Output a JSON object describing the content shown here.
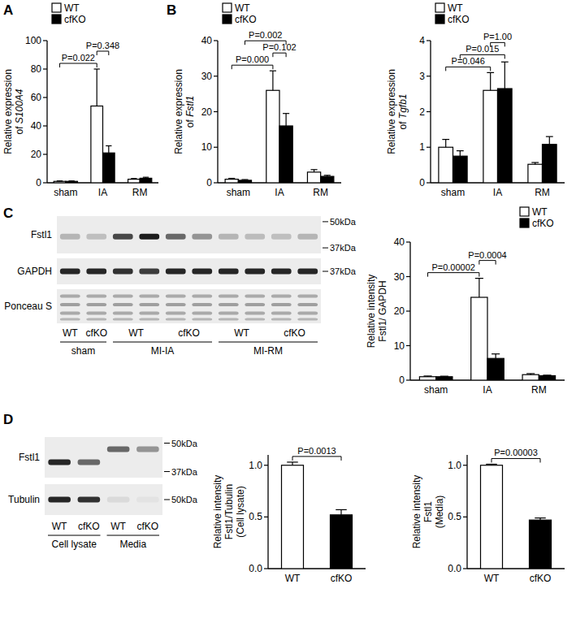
{
  "chart_data": [
    {
      "type": "bar",
      "panel": "A",
      "ylabel": [
        "Relative expression",
        "of S100A4"
      ],
      "categories": [
        "sham",
        "IA",
        "RM"
      ],
      "series": [
        {
          "name": "WT",
          "color": "#ffffff",
          "values": [
            1,
            54,
            2.5
          ],
          "errors": [
            0.3,
            26,
            0.5
          ]
        },
        {
          "name": "cfKO",
          "color": "#000000",
          "values": [
            1,
            21,
            3.2
          ],
          "errors": [
            0.3,
            5,
            0.7
          ]
        }
      ],
      "ylim": [
        0,
        100
      ],
      "yticks": [
        0,
        20,
        40,
        60,
        80,
        100
      ],
      "legend": "top-left",
      "annotations": [
        {
          "text": "P=0.022",
          "between": [
            [
              0,
              0
            ],
            [
              1,
              0
            ]
          ]
        },
        {
          "text": "P=0.348",
          "between": [
            [
              1,
              0
            ],
            [
              1,
              1
            ]
          ]
        }
      ]
    },
    {
      "type": "bar",
      "panel": "B",
      "ylabel": [
        "Relative expression",
        "of Fstl1"
      ],
      "categories": [
        "sham",
        "IA",
        "RM"
      ],
      "series": [
        {
          "name": "WT",
          "color": "#ffffff",
          "values": [
            1,
            26,
            3
          ],
          "errors": [
            0.25,
            5.5,
            0.7
          ]
        },
        {
          "name": "cfKO",
          "color": "#000000",
          "values": [
            0.7,
            16,
            1.8
          ],
          "errors": [
            0.2,
            3.5,
            0.3
          ]
        }
      ],
      "ylim": [
        0,
        40
      ],
      "yticks": [
        0,
        10,
        20,
        30,
        40
      ],
      "legend": "top-left",
      "annotations": [
        {
          "text": "P=0.000",
          "between": [
            [
              0,
              0
            ],
            [
              1,
              0
            ]
          ]
        },
        {
          "text": "P=0.102",
          "between": [
            [
              1,
              0
            ],
            [
              1,
              1
            ]
          ]
        },
        {
          "text": "P=0.002",
          "between": [
            [
              0,
              1
            ],
            [
              1,
              1
            ]
          ]
        }
      ]
    },
    {
      "type": "bar",
      "ylabel": [
        "Relative expression",
        "of Tgfb1"
      ],
      "categories": [
        "sham",
        "IA",
        "RM"
      ],
      "series": [
        {
          "name": "WT",
          "color": "#ffffff",
          "values": [
            1.0,
            2.6,
            0.52
          ],
          "errors": [
            0.22,
            0.5,
            0.05
          ]
        },
        {
          "name": "cfKO",
          "color": "#000000",
          "values": [
            0.75,
            2.65,
            1.08
          ],
          "errors": [
            0.15,
            0.75,
            0.22
          ]
        }
      ],
      "ylim": [
        0,
        4
      ],
      "yticks": [
        0,
        1,
        2,
        3,
        4
      ],
      "legend": "top-left",
      "annotations": [
        {
          "text": "P=0.046",
          "between": [
            [
              0,
              0
            ],
            [
              1,
              0
            ]
          ]
        },
        {
          "text": "P=0.015",
          "between": [
            [
              0,
              1
            ],
            [
              1,
              1
            ]
          ]
        },
        {
          "text": "P=1.00",
          "between": [
            [
              1,
              0
            ],
            [
              1,
              1
            ]
          ]
        }
      ]
    },
    {
      "type": "bar",
      "ylabel": [
        "Relative intensity",
        "Fstl1/ GAPDH"
      ],
      "categories": [
        "sham",
        "IA",
        "RM"
      ],
      "series": [
        {
          "name": "WT",
          "color": "#ffffff",
          "values": [
            1,
            24,
            1.6
          ],
          "errors": [
            0.2,
            5.5,
            0.3
          ]
        },
        {
          "name": "cfKO",
          "color": "#000000",
          "values": [
            1,
            6.3,
            1.3
          ],
          "errors": [
            0.15,
            1.3,
            0.15
          ]
        }
      ],
      "ylim": [
        0,
        40
      ],
      "yticks": [
        0,
        10,
        20,
        30,
        40
      ],
      "legend": "top-right",
      "annotations": [
        {
          "text": "P=0.00002",
          "between": [
            [
              0,
              0
            ],
            [
              1,
              0
            ]
          ]
        },
        {
          "text": "P=0.0004",
          "between": [
            [
              1,
              0
            ],
            [
              1,
              1
            ]
          ]
        }
      ]
    },
    {
      "type": "bar",
      "ylabel": [
        "Relative intensity",
        "Fstl1/Tubulin",
        "(Cell lysate)"
      ],
      "categories": [
        "WT",
        "cfKO"
      ],
      "values": [
        1,
        0.52
      ],
      "errors": [
        0.03,
        0.05
      ],
      "colors": [
        "#ffffff",
        "#000000"
      ],
      "ylim": [
        0,
        1.1
      ],
      "yticks": [
        {
          "value": 0,
          "label": "0.0"
        },
        {
          "value": 0.5,
          "label": "0.5"
        },
        {
          "value": 1,
          "label": "1.0"
        }
      ],
      "annotations": [
        {
          "text": "P=0.0013",
          "between": [
            [
              0,
              0
            ],
            [
              1,
              0
            ]
          ]
        }
      ]
    },
    {
      "type": "bar",
      "ylabel": [
        "Relative intensity",
        "Fstl1",
        "(Media)"
      ],
      "categories": [
        "WT",
        "cfKO"
      ],
      "values": [
        1,
        0.47
      ],
      "errors": [
        0.01,
        0.02
      ],
      "colors": [
        "#ffffff",
        "#000000"
      ],
      "ylim": [
        0,
        1.1
      ],
      "yticks": [
        {
          "value": 0,
          "label": "0.0"
        },
        {
          "value": 0.5,
          "label": "0.5"
        },
        {
          "value": 1,
          "label": "1.0"
        }
      ],
      "annotations": [
        {
          "text": "P=0.00003",
          "between": [
            [
              0,
              0
            ],
            [
              1,
              0
            ]
          ]
        }
      ]
    }
  ],
  "blots": [
    {
      "panel": "C",
      "rows": [
        "Fstl1",
        "GAPDH",
        "Ponceau S"
      ],
      "markers": [
        {
          "row": 0,
          "label": "50kDa"
        },
        {
          "row": 0,
          "label": "37kDa"
        },
        {
          "row": 1,
          "label": "37kDa"
        }
      ],
      "groups": [
        {
          "label": "sham",
          "lanes": [
            {
              "label": "WT",
              "count": 1
            },
            {
              "label": "cfKO",
              "count": 1
            }
          ]
        },
        {
          "label": "MI-IA",
          "lanes": [
            {
              "label": "WT",
              "count": 2
            },
            {
              "label": "cfKO",
              "count": 2
            }
          ]
        },
        {
          "label": "MI-RM",
          "lanes": [
            {
              "label": "WT",
              "count": 2
            },
            {
              "label": "cfKO",
              "count": 2
            }
          ]
        }
      ]
    },
    {
      "panel": "D",
      "rows": [
        "Fstl1",
        "Tubulin"
      ],
      "markers": [
        {
          "row": 0,
          "label": "50kDa"
        },
        {
          "row": 0,
          "label": "37kDa"
        },
        {
          "row": 1,
          "label": "50kDa"
        }
      ],
      "groups": [
        {
          "label": "Cell lysate",
          "lanes": [
            {
              "label": "WT",
              "count": 1
            },
            {
              "label": "cfKO",
              "count": 1
            }
          ]
        },
        {
          "label": "Media",
          "lanes": [
            {
              "label": "WT",
              "count": 1
            },
            {
              "label": "cfKO",
              "count": 1
            }
          ]
        }
      ]
    }
  ]
}
